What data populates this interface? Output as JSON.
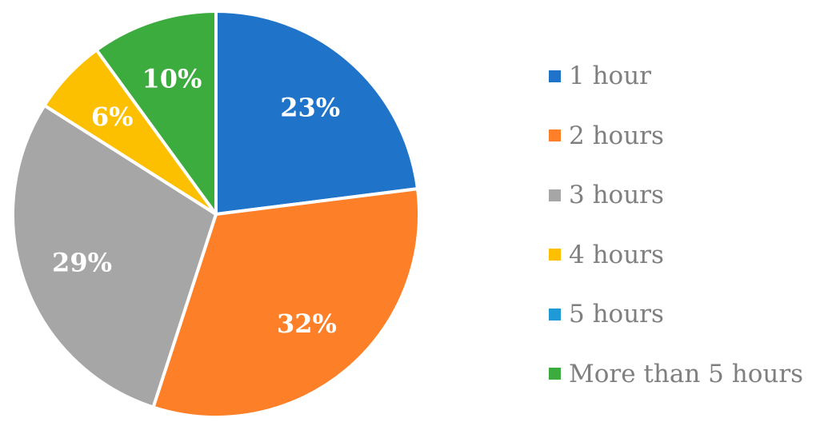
{
  "chart_data": {
    "type": "pie",
    "title": "",
    "categories": [
      "1 hour",
      "2 hours",
      "3 hours",
      "4 hours",
      "5 hours",
      "More than 5 hours"
    ],
    "values": [
      23,
      32,
      29,
      6,
      0,
      10
    ],
    "value_labels": [
      "23%",
      "32%",
      "29%",
      "6%",
      "",
      "10%"
    ],
    "colors": [
      "#1f73c8",
      "#fd7f27",
      "#a6a6a6",
      "#fdc000",
      "#1f9ad6",
      "#3dac3f"
    ],
    "legend_position": "right",
    "start_angle": "12 o'clock",
    "direction": "clockwise"
  }
}
